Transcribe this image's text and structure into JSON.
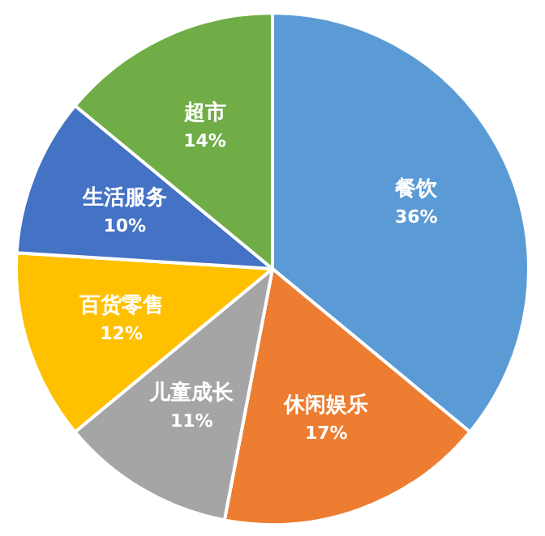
{
  "chart_data": {
    "type": "pie",
    "categories": [
      "餐饮",
      "休闲娱乐",
      "儿童成长",
      "百货零售",
      "生活服务",
      "超市"
    ],
    "values": [
      36,
      17,
      11,
      12,
      10,
      14
    ],
    "value_labels": [
      "36%",
      "17%",
      "11%",
      "12%",
      "10%",
      "14%"
    ],
    "colors": [
      "#5b9bd5",
      "#ed7d31",
      "#a5a5a5",
      "#ffc000",
      "#4472c4",
      "#70ad47"
    ]
  }
}
